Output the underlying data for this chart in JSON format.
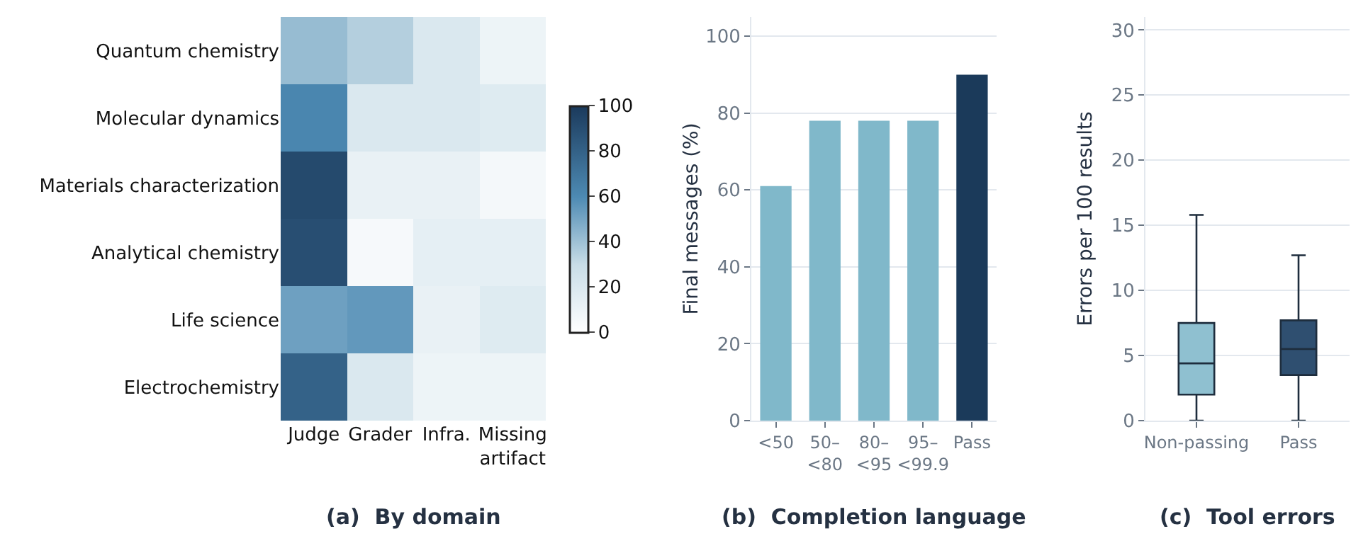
{
  "chart_data": [
    {
      "type": "heatmap",
      "title": "(a)  By domain",
      "categories": [
        "Judge",
        "Grader",
        "Infra.",
        "Missing artifact"
      ],
      "y_categories": [
        "Quantum chemistry",
        "Molecular dynamics",
        "Materials characterization",
        "Analytical chemistry",
        "Life science",
        "Electrochemistry"
      ],
      "cells": [
        [
          42,
          35,
          20,
          10
        ],
        [
          62,
          20,
          20,
          18
        ],
        [
          92,
          12,
          12,
          6
        ],
        [
          90,
          5,
          14,
          14
        ],
        [
          52,
          55,
          12,
          18
        ],
        [
          80,
          20,
          10,
          10
        ]
      ],
      "clim": [
        0,
        100
      ],
      "cticks": [
        0,
        20,
        40,
        60,
        80,
        100
      ]
    },
    {
      "type": "bar",
      "title": "(b)  Completion language",
      "ylabel": "Final messages (%)",
      "categories": [
        "<50",
        "50–<80",
        "80–<95",
        "95–<99.9",
        "Pass"
      ],
      "values": [
        61,
        78,
        78,
        78,
        90
      ],
      "colors": [
        "#80b8ca",
        "#80b8ca",
        "#80b8ca",
        "#80b8ca",
        "#1b3a5a"
      ],
      "ylim": [
        0,
        105
      ],
      "yticks": [
        0,
        20,
        40,
        60,
        80,
        100
      ],
      "grid": "y"
    },
    {
      "type": "box",
      "title": "(c)  Tool errors",
      "ylabel": "Errors per 100 results",
      "categories": [
        "Non-passing",
        "Pass"
      ],
      "colors": [
        "#8fc0d0",
        "#2f4f70"
      ],
      "boxes": [
        {
          "low": 0,
          "q1": 2,
          "median": 4.4,
          "q3": 7.5,
          "high": 15.8
        },
        {
          "low": 0,
          "q1": 3.5,
          "median": 5.5,
          "q3": 7.7,
          "high": 12.7
        }
      ],
      "ylim": [
        0,
        31
      ],
      "yticks": [
        0,
        5,
        10,
        15,
        20,
        25,
        30
      ],
      "grid": "y"
    }
  ]
}
